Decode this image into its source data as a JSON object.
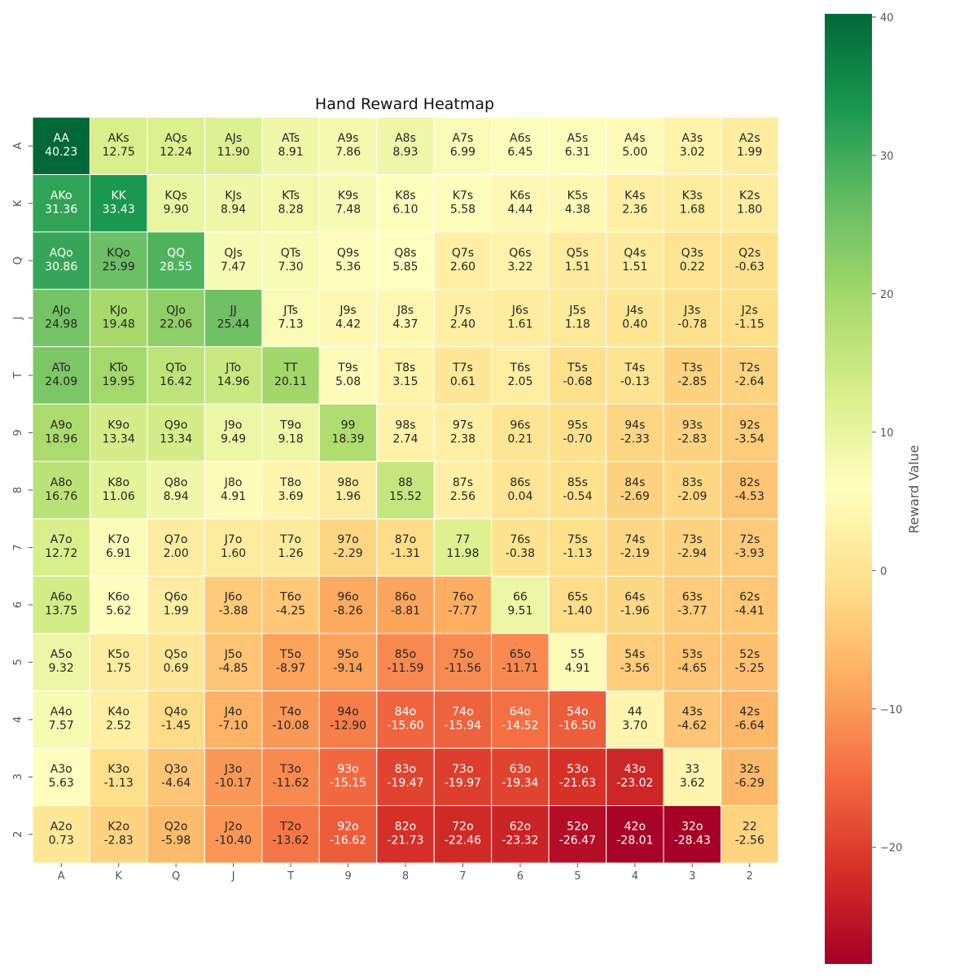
{
  "chart_data": {
    "type": "heatmap",
    "title": "Hand Reward Heatmap",
    "x_categories": [
      "A",
      "K",
      "Q",
      "J",
      "T",
      "9",
      "8",
      "7",
      "6",
      "5",
      "4",
      "3",
      "2"
    ],
    "y_categories": [
      "A",
      "K",
      "Q",
      "J",
      "T",
      "9",
      "8",
      "7",
      "6",
      "5",
      "4",
      "3",
      "2"
    ],
    "hand_labels": [
      [
        "AA",
        "AKs",
        "AQs",
        "AJs",
        "ATs",
        "A9s",
        "A8s",
        "A7s",
        "A6s",
        "A5s",
        "A4s",
        "A3s",
        "A2s"
      ],
      [
        "AKo",
        "KK",
        "KQs",
        "KJs",
        "KTs",
        "K9s",
        "K8s",
        "K7s",
        "K6s",
        "K5s",
        "K4s",
        "K3s",
        "K2s"
      ],
      [
        "AQo",
        "KQo",
        "QQ",
        "QJs",
        "QTs",
        "Q9s",
        "Q8s",
        "Q7s",
        "Q6s",
        "Q5s",
        "Q4s",
        "Q3s",
        "Q2s"
      ],
      [
        "AJo",
        "KJo",
        "QJo",
        "JJ",
        "JTs",
        "J9s",
        "J8s",
        "J7s",
        "J6s",
        "J5s",
        "J4s",
        "J3s",
        "J2s"
      ],
      [
        "ATo",
        "KTo",
        "QTo",
        "JTo",
        "TT",
        "T9s",
        "T8s",
        "T7s",
        "T6s",
        "T5s",
        "T4s",
        "T3s",
        "T2s"
      ],
      [
        "A9o",
        "K9o",
        "Q9o",
        "J9o",
        "T9o",
        "99",
        "98s",
        "97s",
        "96s",
        "95s",
        "94s",
        "93s",
        "92s"
      ],
      [
        "A8o",
        "K8o",
        "Q8o",
        "J8o",
        "T8o",
        "98o",
        "88",
        "87s",
        "86s",
        "85s",
        "84s",
        "83s",
        "82s"
      ],
      [
        "A7o",
        "K7o",
        "Q7o",
        "J7o",
        "T7o",
        "97o",
        "87o",
        "77",
        "76s",
        "75s",
        "74s",
        "73s",
        "72s"
      ],
      [
        "A6o",
        "K6o",
        "Q6o",
        "J6o",
        "T6o",
        "96o",
        "86o",
        "76o",
        "66",
        "65s",
        "64s",
        "63s",
        "62s"
      ],
      [
        "A5o",
        "K5o",
        "Q5o",
        "J5o",
        "T5o",
        "95o",
        "85o",
        "75o",
        "65o",
        "55",
        "54s",
        "53s",
        "52s"
      ],
      [
        "A4o",
        "K4o",
        "Q4o",
        "J4o",
        "T4o",
        "94o",
        "84o",
        "74o",
        "64o",
        "54o",
        "44",
        "43s",
        "42s"
      ],
      [
        "A3o",
        "K3o",
        "Q3o",
        "J3o",
        "T3o",
        "93o",
        "83o",
        "73o",
        "63o",
        "53o",
        "43o",
        "33",
        "32s"
      ],
      [
        "A2o",
        "K2o",
        "Q2o",
        "J2o",
        "T2o",
        "92o",
        "82o",
        "72o",
        "62o",
        "52o",
        "42o",
        "32o",
        "22"
      ]
    ],
    "values": [
      [
        40.23,
        12.75,
        12.24,
        11.9,
        8.91,
        7.86,
        8.93,
        6.99,
        6.45,
        6.31,
        5.0,
        3.02,
        1.99
      ],
      [
        31.36,
        33.43,
        9.9,
        8.94,
        8.28,
        7.48,
        6.1,
        5.58,
        4.44,
        4.38,
        2.36,
        1.68,
        1.8
      ],
      [
        30.86,
        25.99,
        28.55,
        7.47,
        7.3,
        5.36,
        5.85,
        2.6,
        3.22,
        1.51,
        1.51,
        0.22,
        -0.63
      ],
      [
        24.98,
        19.48,
        22.06,
        25.44,
        7.13,
        4.42,
        4.37,
        2.4,
        1.61,
        1.18,
        0.4,
        -0.78,
        -1.15
      ],
      [
        24.09,
        19.95,
        16.42,
        14.96,
        20.11,
        5.08,
        3.15,
        0.61,
        2.05,
        -0.68,
        -0.13,
        -2.85,
        -2.64
      ],
      [
        18.96,
        13.34,
        13.34,
        9.49,
        9.18,
        18.39,
        2.74,
        2.38,
        0.21,
        -0.7,
        -2.33,
        -2.83,
        -3.54
      ],
      [
        16.76,
        11.06,
        8.94,
        4.91,
        3.69,
        1.96,
        15.52,
        2.56,
        0.04,
        -0.54,
        -2.69,
        -2.09,
        -4.53
      ],
      [
        12.72,
        6.91,
        2.0,
        1.6,
        1.26,
        -2.29,
        -1.31,
        11.98,
        -0.38,
        -1.13,
        -2.19,
        -2.94,
        -3.93
      ],
      [
        13.75,
        5.62,
        1.99,
        -3.88,
        -4.25,
        -8.26,
        -8.81,
        -7.77,
        9.51,
        -1.4,
        -1.96,
        -3.77,
        -4.41
      ],
      [
        9.32,
        1.75,
        0.69,
        -4.85,
        -8.97,
        -9.14,
        -11.59,
        -11.56,
        -11.71,
        4.91,
        -3.56,
        -4.65,
        -5.25
      ],
      [
        7.57,
        2.52,
        -1.45,
        -7.1,
        -10.08,
        -12.9,
        -15.6,
        -15.94,
        -14.52,
        -16.5,
        3.7,
        -4.62,
        -6.64
      ],
      [
        5.63,
        -1.13,
        -4.64,
        -10.17,
        -11.62,
        -15.15,
        -19.47,
        -19.97,
        -19.34,
        -21.63,
        -23.02,
        3.62,
        -6.29
      ],
      [
        0.73,
        -2.83,
        -5.98,
        -10.4,
        -13.62,
        -16.62,
        -21.73,
        -22.46,
        -23.32,
        -26.47,
        -28.01,
        -28.43,
        -2.56
      ]
    ],
    "colormap": "RdYlGn",
    "vmin": -28.43,
    "vmax": 40.23,
    "colorbar_label": "Reward Value",
    "colorbar_ticks": [
      40,
      30,
      20,
      10,
      0,
      -10,
      -20
    ],
    "colorbar_tick_labels": [
      "40",
      "30",
      "20",
      "10",
      "0",
      "−10",
      "−20"
    ],
    "grid": false
  }
}
